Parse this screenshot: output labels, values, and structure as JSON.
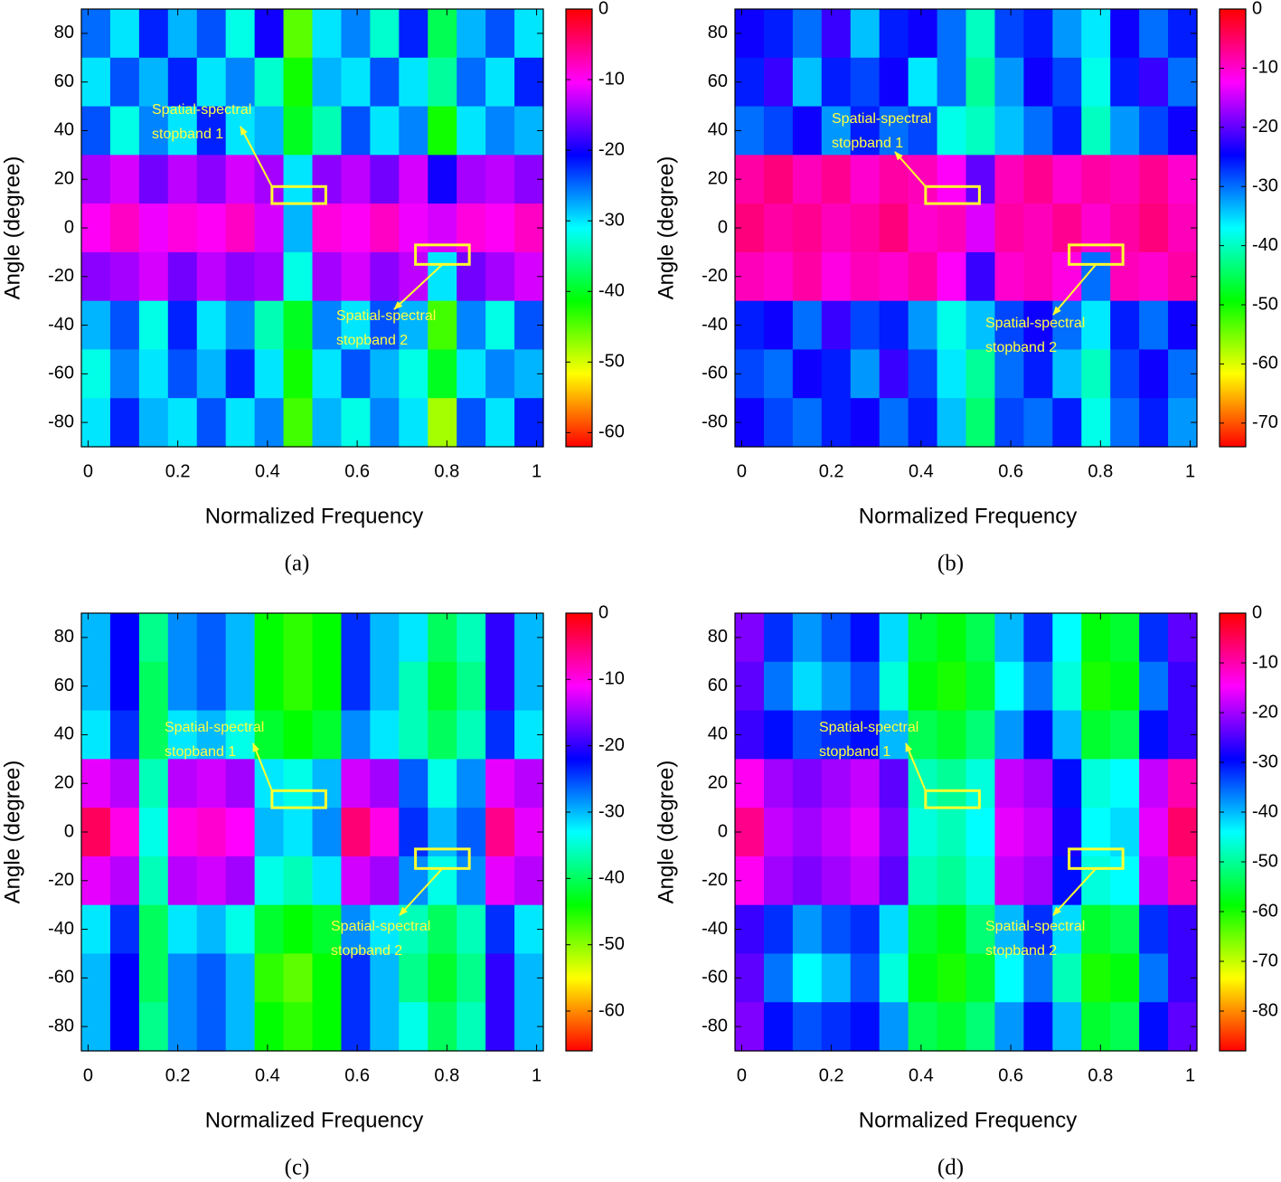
{
  "chart_data": [
    {
      "type": "heatmap",
      "caption": "(a)",
      "xlabel": "Normalized Frequency",
      "ylabel": "Angle (degree)",
      "xlim": [
        -0.015,
        1.015
      ],
      "ylim": [
        -90,
        90
      ],
      "xticks": [
        0,
        0.2,
        0.4,
        0.6,
        0.8,
        1
      ],
      "yticks": [
        -80,
        -60,
        -40,
        -20,
        0,
        20,
        40,
        60,
        80
      ],
      "clim": [
        -62,
        0
      ],
      "cticks": [
        0,
        -10,
        -20,
        -30,
        -40,
        -50,
        -60
      ],
      "colormap": [
        "#ff0000",
        "#ff00ff",
        "#0000ff",
        "#00ffff",
        "#00ff00",
        "#ffff00",
        "#ff0000"
      ],
      "z": [
        [
          -25,
          -30,
          -22,
          -28,
          -24,
          -32,
          -20,
          -45,
          -30,
          -26,
          -33,
          -22,
          -38,
          -28,
          -24,
          -30
        ],
        [
          -30,
          -24,
          -28,
          -22,
          -30,
          -26,
          -33,
          -42,
          -28,
          -30,
          -24,
          -30,
          -35,
          -25,
          -30,
          -22
        ],
        [
          -24,
          -32,
          -26,
          -30,
          -22,
          -30,
          -28,
          -40,
          -34,
          -24,
          -30,
          -26,
          -42,
          -30,
          -26,
          -28
        ],
        [
          -14,
          -12,
          -16,
          -13,
          -15,
          -12,
          -14,
          -30,
          -15,
          -13,
          -16,
          -12,
          -20,
          -14,
          -13,
          -15
        ],
        [
          -10,
          -8,
          -11,
          -9,
          -10,
          -8,
          -12,
          -28,
          -9,
          -10,
          -8,
          -11,
          -12,
          -9,
          -10,
          -8
        ],
        [
          -15,
          -14,
          -12,
          -16,
          -13,
          -15,
          -14,
          -32,
          -14,
          -12,
          -15,
          -13,
          -30,
          -16,
          -14,
          -12
        ],
        [
          -28,
          -24,
          -32,
          -22,
          -30,
          -26,
          -34,
          -40,
          -26,
          -30,
          -24,
          -28,
          -44,
          -26,
          -32,
          -24
        ],
        [
          -32,
          -26,
          -30,
          -24,
          -28,
          -22,
          -30,
          -42,
          -30,
          -24,
          -28,
          -32,
          -40,
          -30,
          -26,
          -28
        ],
        [
          -30,
          -22,
          -28,
          -30,
          -24,
          -30,
          -26,
          -44,
          -28,
          -32,
          -26,
          -30,
          -48,
          -24,
          -30,
          -22
        ]
      ],
      "annotations": [
        {
          "lines": [
            "Spatial-spectral",
            "stopband 1"
          ],
          "box_x": [
            0.41,
            0.53
          ],
          "box_y": [
            10,
            17
          ]
        },
        {
          "lines": [
            "Spatial-spectral",
            "stopband 2"
          ],
          "box_x": [
            0.73,
            0.85
          ],
          "box_y": [
            -15,
            -7
          ]
        }
      ]
    },
    {
      "type": "heatmap",
      "caption": "(b)",
      "xlabel": "Normalized Frequency",
      "ylabel": "Angle (degree)",
      "xlim": [
        -0.015,
        1.015
      ],
      "ylim": [
        -90,
        90
      ],
      "xticks": [
        0,
        0.2,
        0.4,
        0.6,
        0.8,
        1
      ],
      "yticks": [
        -80,
        -60,
        -40,
        -20,
        0,
        20,
        40,
        60,
        80
      ],
      "clim": [
        -74,
        0
      ],
      "cticks": [
        0,
        -10,
        -20,
        -30,
        -40,
        -50,
        -60,
        -70
      ],
      "colormap": [
        "#ff0000",
        "#ff00ff",
        "#0000ff",
        "#00ffff",
        "#00ff00",
        "#ffff00",
        "#ff0000"
      ],
      "z": [
        [
          -24,
          -26,
          -30,
          -22,
          -34,
          -26,
          -24,
          -30,
          -40,
          -28,
          -26,
          -32,
          -36,
          -24,
          -30,
          -26
        ],
        [
          -26,
          -22,
          -34,
          -26,
          -28,
          -24,
          -36,
          -30,
          -42,
          -32,
          -24,
          -28,
          -38,
          -26,
          -22,
          -30
        ],
        [
          -30,
          -28,
          -24,
          -32,
          -26,
          -30,
          -28,
          -38,
          -40,
          -34,
          -30,
          -26,
          -40,
          -32,
          -28,
          -24
        ],
        [
          -8,
          -6,
          -9,
          -7,
          -10,
          -8,
          -9,
          -12,
          -20,
          -9,
          -7,
          -10,
          -8,
          -9,
          -7,
          -10
        ],
        [
          -6,
          -8,
          -7,
          -9,
          -8,
          -6,
          -10,
          -9,
          -14,
          -8,
          -9,
          -7,
          -10,
          -8,
          -6,
          -9
        ],
        [
          -9,
          -10,
          -8,
          -11,
          -9,
          -10,
          -8,
          -12,
          -22,
          -10,
          -9,
          -11,
          -30,
          -9,
          -10,
          -8
        ],
        [
          -26,
          -24,
          -30,
          -22,
          -28,
          -26,
          -32,
          -38,
          -34,
          -28,
          -24,
          -30,
          -36,
          -26,
          -30,
          -24
        ],
        [
          -28,
          -30,
          -24,
          -26,
          -32,
          -22,
          -28,
          -36,
          -42,
          -30,
          -26,
          -34,
          -40,
          -28,
          -24,
          -30
        ],
        [
          -24,
          -28,
          -30,
          -26,
          -24,
          -30,
          -26,
          -34,
          -44,
          -28,
          -30,
          -26,
          -38,
          -30,
          -26,
          -32
        ]
      ],
      "annotations": [
        {
          "lines": [
            "Spatial-spectral",
            "stopband 1"
          ],
          "box_x": [
            0.41,
            0.53
          ],
          "box_y": [
            10,
            17
          ]
        },
        {
          "lines": [
            "Spatial-spectral",
            "stopband 2"
          ],
          "box_x": [
            0.73,
            0.85
          ],
          "box_y": [
            -15,
            -7
          ]
        }
      ]
    },
    {
      "type": "heatmap",
      "caption": "(c)",
      "xlabel": "Normalized Frequency",
      "ylabel": "Angle (degree)",
      "xlim": [
        -0.015,
        1.015
      ],
      "ylim": [
        -90,
        90
      ],
      "xticks": [
        0,
        0.2,
        0.4,
        0.6,
        0.8,
        1
      ],
      "yticks": [
        -80,
        -60,
        -40,
        -20,
        0,
        20,
        40,
        60,
        80
      ],
      "clim": [
        -66,
        0
      ],
      "cticks": [
        0,
        -10,
        -20,
        -30,
        -40,
        -50,
        -60
      ],
      "colormap": [
        "#ff0000",
        "#ff00ff",
        "#0000ff",
        "#00ffff",
        "#00ff00",
        "#ffff00",
        "#ff0000"
      ],
      "z": [
        [
          -30,
          -22,
          -38,
          -28,
          -26,
          -30,
          -44,
          -46,
          -44,
          -24,
          -30,
          -32,
          -40,
          -36,
          -20,
          -30
        ],
        [
          -30,
          -22,
          -40,
          -28,
          -26,
          -30,
          -44,
          -46,
          -44,
          -24,
          -30,
          -36,
          -42,
          -38,
          -20,
          -30
        ],
        [
          -32,
          -24,
          -40,
          -32,
          -30,
          -34,
          -42,
          -44,
          -42,
          -28,
          -32,
          -36,
          -40,
          -36,
          -24,
          -32
        ],
        [
          -12,
          -14,
          -36,
          -14,
          -13,
          -15,
          -32,
          -34,
          -30,
          -13,
          -15,
          -26,
          -34,
          -28,
          -12,
          -14
        ],
        [
          -4,
          -10,
          -34,
          -10,
          -9,
          -11,
          -30,
          -32,
          -28,
          -5,
          -10,
          -24,
          -30,
          -26,
          -6,
          -12
        ],
        [
          -12,
          -14,
          -36,
          -14,
          -13,
          -15,
          -34,
          -36,
          -32,
          -13,
          -15,
          -28,
          -34,
          -28,
          -12,
          -14
        ],
        [
          -32,
          -24,
          -40,
          -32,
          -30,
          -34,
          -42,
          -44,
          -42,
          -28,
          -32,
          -36,
          -40,
          -36,
          -24,
          -32
        ],
        [
          -30,
          -22,
          -40,
          -28,
          -26,
          -30,
          -46,
          -48,
          -44,
          -24,
          -30,
          -38,
          -42,
          -38,
          -20,
          -30
        ],
        [
          -30,
          -22,
          -38,
          -28,
          -26,
          -30,
          -44,
          -46,
          -44,
          -24,
          -30,
          -34,
          -40,
          -36,
          -20,
          -30
        ]
      ],
      "annotations": [
        {
          "lines": [
            "Spatial-spectral",
            "stopband 1"
          ],
          "box_x": [
            0.41,
            0.53
          ],
          "box_y": [
            10,
            17
          ]
        },
        {
          "lines": [
            "Spatial-spectral",
            "stopband 2"
          ],
          "box_x": [
            0.73,
            0.85
          ],
          "box_y": [
            -15,
            -7
          ]
        }
      ]
    },
    {
      "type": "heatmap",
      "caption": "(d)",
      "xlabel": "Normalized Frequency",
      "ylabel": "Angle (degree)",
      "xlim": [
        -0.015,
        1.015
      ],
      "ylim": [
        -90,
        90
      ],
      "xticks": [
        0,
        0.2,
        0.4,
        0.6,
        0.8,
        1
      ],
      "yticks": [
        -80,
        -60,
        -40,
        -20,
        0,
        20,
        40,
        60,
        80
      ],
      "clim": [
        -88,
        0
      ],
      "cticks": [
        0,
        -10,
        -20,
        -30,
        -40,
        -50,
        -60,
        -70,
        -80
      ],
      "colormap": [
        "#ff0000",
        "#ff00ff",
        "#0000ff",
        "#00ffff",
        "#00ff00",
        "#ffff00",
        "#ff0000"
      ],
      "z": [
        [
          -22,
          -32,
          -38,
          -34,
          -30,
          -42,
          -56,
          -58,
          -54,
          -40,
          -32,
          -44,
          -58,
          -56,
          -32,
          -24
        ],
        [
          -24,
          -36,
          -42,
          -38,
          -34,
          -46,
          -58,
          -60,
          -56,
          -44,
          -36,
          -46,
          -60,
          -58,
          -36,
          -26
        ],
        [
          -26,
          -30,
          -34,
          -32,
          -30,
          -40,
          -54,
          -56,
          -52,
          -38,
          -30,
          -40,
          -56,
          -54,
          -30,
          -26
        ],
        [
          -14,
          -20,
          -22,
          -20,
          -18,
          -24,
          -48,
          -50,
          -46,
          -18,
          -20,
          -30,
          -46,
          -44,
          -18,
          -10
        ],
        [
          -8,
          -18,
          -20,
          -18,
          -16,
          -22,
          -46,
          -48,
          -44,
          -16,
          -18,
          -28,
          -44,
          -42,
          -16,
          -6
        ],
        [
          -14,
          -20,
          -22,
          -20,
          -18,
          -24,
          -48,
          -50,
          -46,
          -18,
          -20,
          -30,
          -46,
          -44,
          -18,
          -10
        ],
        [
          -26,
          -32,
          -38,
          -34,
          -32,
          -42,
          -56,
          -58,
          -52,
          -40,
          -32,
          -42,
          -56,
          -54,
          -32,
          -26
        ],
        [
          -24,
          -36,
          -44,
          -40,
          -34,
          -46,
          -58,
          -60,
          -56,
          -44,
          -36,
          -48,
          -60,
          -58,
          -36,
          -26
        ],
        [
          -22,
          -30,
          -34,
          -32,
          -30,
          -38,
          -54,
          -56,
          -52,
          -38,
          -30,
          -40,
          -56,
          -54,
          -30,
          -24
        ]
      ],
      "annotations": [
        {
          "lines": [
            "Spatial-spectral",
            "stopband 1"
          ],
          "box_x": [
            0.41,
            0.53
          ],
          "box_y": [
            10,
            17
          ]
        },
        {
          "lines": [
            "Spatial-spectral",
            "stopband 2"
          ],
          "box_x": [
            0.73,
            0.85
          ],
          "box_y": [
            -15,
            -7
          ]
        }
      ]
    }
  ]
}
